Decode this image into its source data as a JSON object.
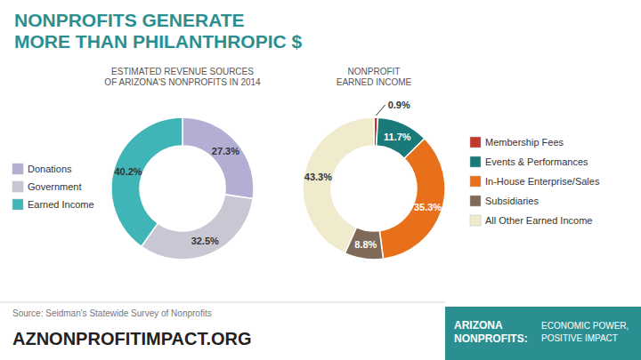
{
  "chart_data": [
    {
      "type": "pie",
      "title": "NONPROFITS GENERATE\nMORE THAN PHILANTHROPIC $",
      "subtitle": "ESTIMATED REVENUE SOURCES\nOF ARIZONA'S NONPROFITS IN 2014",
      "categories": [
        "Donations",
        "Government",
        "Earned Income"
      ],
      "values": [
        27.3,
        32.5,
        40.2
      ],
      "value_labels": [
        "27.3%",
        "32.5%",
        "40.2%"
      ],
      "colors": [
        "#b3aed4",
        "#c8c8d4",
        "#40b5b8"
      ],
      "data_labels": true,
      "legend": "left",
      "annotations": [
        "Source: Seidman's Statewide Survey of Nonprofits",
        "AZNONPROFITIMPACT.ORG",
        "ARIZONA\nNONPROFITS:",
        "ECONOMIC POWER,\nPOSITIVE IMPACT"
      ]
    },
    {
      "type": "pie",
      "subtitle": "NONPROFIT\nEARNED INCOME",
      "categories": [
        "Membership Fees",
        "Events & Performances",
        "In-House Enterprise/Sales",
        "Subsidiaries",
        "All Other Earned Income"
      ],
      "values": [
        0.9,
        11.7,
        35.3,
        8.8,
        43.3
      ],
      "value_labels": [
        "0.9%",
        "11.7%",
        "35.3%",
        "8.8%",
        "43.3%"
      ],
      "colors": [
        "#c0392b",
        "#1a7a7a",
        "#e8701a",
        "#7f6a5a",
        "#f0ebcc"
      ],
      "data_labels": true,
      "legend": "right"
    }
  ]
}
